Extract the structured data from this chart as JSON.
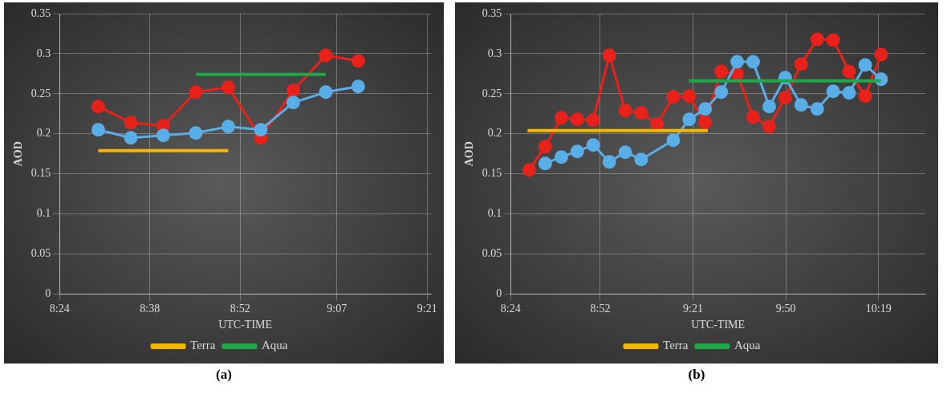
{
  "chart_data": [
    {
      "type": "line",
      "xlabel": "UTC-TIME",
      "ylabel": "AOD",
      "annotations": [
        "(a)"
      ],
      "grid": true,
      "legend": "bottom",
      "xlim": [
        8.4,
        9.36
      ],
      "xticks": [
        {
          "value": 8.4,
          "label": "8:24"
        },
        {
          "value": 8.6333,
          "label": "8:38"
        },
        {
          "value": 8.8667,
          "label": "8:52"
        },
        {
          "value": 9.1167,
          "label": "9:07"
        },
        {
          "value": 9.35,
          "label": "9:21"
        }
      ],
      "ylim": [
        0,
        0.35
      ],
      "yticks": [
        0,
        0.05,
        0.1,
        0.15,
        0.2,
        0.25,
        0.3,
        0.35
      ],
      "series": [
        {
          "color": "#5aaee8",
          "marker": "circle",
          "x": [
            8.5,
            8.584,
            8.668,
            8.752,
            8.836,
            8.92,
            9.004,
            9.088,
            9.172
          ],
          "values": [
            0.205,
            0.195,
            0.198,
            0.201,
            0.209,
            0.205,
            0.239,
            0.252,
            0.259
          ]
        },
        {
          "color": "#e8221a",
          "marker": "circle",
          "x": [
            8.5,
            8.584,
            8.668,
            8.752,
            8.836,
            8.92,
            9.004,
            9.088,
            9.172
          ],
          "values": [
            0.234,
            0.214,
            0.21,
            0.252,
            0.258,
            0.195,
            0.254,
            0.298,
            0.291
          ]
        },
        {
          "name": "Terra",
          "color": "#f5b800",
          "marker": "none",
          "x": [
            8.5,
            8.836
          ],
          "values": [
            0.179,
            0.179
          ]
        },
        {
          "name": "Aqua",
          "color": "#1fa84a",
          "marker": "none",
          "x": [
            8.752,
            9.088
          ],
          "values": [
            0.274,
            0.274
          ]
        }
      ]
    },
    {
      "type": "line",
      "xlabel": "UTC-TIME",
      "ylabel": "AOD",
      "annotations": [
        "(b)"
      ],
      "grid": true,
      "legend": "bottom",
      "xlim": [
        8.4,
        10.56
      ],
      "xticks": [
        {
          "value": 8.4,
          "label": "8:24"
        },
        {
          "value": 8.8667,
          "label": "8:52"
        },
        {
          "value": 9.35,
          "label": "9:21"
        },
        {
          "value": 9.8333,
          "label": "9:50"
        },
        {
          "value": 10.3167,
          "label": "10:19"
        }
      ],
      "ylim": [
        0,
        0.35
      ],
      "yticks": [
        0,
        0.05,
        0.1,
        0.15,
        0.2,
        0.25,
        0.3,
        0.35
      ],
      "series": [
        {
          "color": "#5aaee8",
          "marker": "circle",
          "x": [
            8.58,
            8.664,
            8.747,
            8.83,
            8.914,
            8.997,
            9.08,
            9.247,
            9.33,
            9.413,
            9.497,
            9.58,
            9.663,
            9.747,
            9.83,
            9.913,
            9.997,
            10.08,
            10.163,
            10.247,
            10.33
          ],
          "values": [
            0.163,
            0.171,
            0.178,
            0.186,
            0.165,
            0.177,
            0.168,
            0.192,
            0.218,
            0.231,
            0.252,
            0.29,
            0.29,
            0.234,
            0.27,
            0.236,
            0.231,
            0.253,
            0.251,
            0.286,
            0.268
          ]
        },
        {
          "color": "#e8221a",
          "marker": "circle",
          "x": [
            8.497,
            8.58,
            8.664,
            8.747,
            8.83,
            8.914,
            8.997,
            9.08,
            9.163,
            9.247,
            9.33,
            9.413,
            9.497,
            9.58,
            9.663,
            9.747,
            9.83,
            9.913,
            9.997,
            10.08,
            10.163,
            10.247,
            10.33
          ],
          "values": [
            0.155,
            0.184,
            0.22,
            0.218,
            0.217,
            0.298,
            0.229,
            0.226,
            0.212,
            0.246,
            0.247,
            0.214,
            0.278,
            0.275,
            0.221,
            0.209,
            0.245,
            0.287,
            0.318,
            0.317,
            0.278,
            0.247,
            0.299
          ]
        },
        {
          "name": "Terra",
          "color": "#f5b800",
          "marker": "none",
          "x": [
            8.488,
            9.427
          ],
          "values": [
            0.204,
            0.204
          ]
        },
        {
          "name": "Aqua",
          "color": "#1fa84a",
          "marker": "none",
          "x": [
            9.329,
            10.329
          ],
          "values": [
            0.266,
            0.266
          ]
        }
      ]
    }
  ]
}
